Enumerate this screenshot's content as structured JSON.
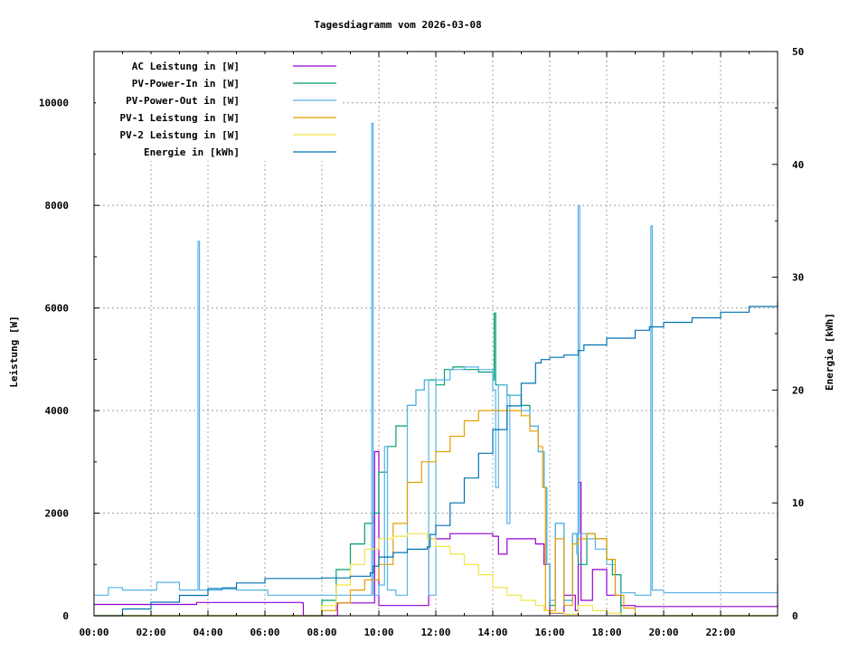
{
  "chart_data": {
    "type": "line",
    "title": "Tagesdiagramm vom 2026-03-08",
    "xlabel": "",
    "ylabel": "Leistung [W]",
    "y2label": "Energie [kWh]",
    "xlim": [
      0,
      24
    ],
    "ylim": [
      0,
      11000
    ],
    "y2lim": [
      0,
      50
    ],
    "grid": true,
    "legend_position": "top-left",
    "x_ticks": [
      "00:00",
      "02:00",
      "04:00",
      "06:00",
      "08:00",
      "10:00",
      "12:00",
      "14:00",
      "16:00",
      "18:00",
      "20:00",
      "22:00"
    ],
    "y_ticks": [
      "0",
      "2000",
      "4000",
      "6000",
      "8000",
      "10000"
    ],
    "y2_ticks": [
      "0",
      "10",
      "20",
      "30",
      "40",
      "50"
    ],
    "series": [
      {
        "name": "AC Leistung in [W]",
        "color": "#9400d3",
        "axis": "y",
        "x": [
          0,
          3.5,
          3.6,
          7.3,
          7.35,
          8.5,
          8.55,
          9.8,
          9.85,
          9.95,
          10.0,
          10.2,
          11.7,
          11.75,
          12.5,
          13.0,
          14.0,
          14.2,
          14.5,
          15.0,
          15.5,
          15.8,
          16.0,
          16.5,
          16.9,
          17.0,
          17.1,
          17.5,
          18.0,
          18.5,
          19.0,
          24
        ],
        "y": [
          220,
          220,
          260,
          250,
          0,
          0,
          250,
          250,
          3200,
          3200,
          200,
          200,
          200,
          1500,
          1600,
          1600,
          1550,
          1200,
          1500,
          1500,
          1400,
          1000,
          50,
          400,
          100,
          2600,
          300,
          900,
          400,
          200,
          180,
          220
        ]
      },
      {
        "name": "PV-Power-In in [W]",
        "color": "#009e73",
        "axis": "y",
        "x": [
          0,
          7.7,
          8.0,
          8.5,
          9.0,
          9.5,
          9.8,
          10.0,
          10.3,
          10.6,
          11.0,
          11.3,
          11.6,
          12.0,
          12.3,
          12.6,
          13.0,
          13.5,
          14.0,
          14.05,
          14.1,
          14.5,
          15.0,
          15.3,
          15.6,
          15.8,
          15.9,
          16.0,
          16.2,
          16.5,
          16.8,
          17.0,
          17.3,
          17.6,
          18.0,
          18.2,
          18.5,
          24
        ],
        "y": [
          0,
          0,
          300,
          900,
          1400,
          1800,
          2000,
          2800,
          3300,
          3700,
          4100,
          4400,
          4600,
          4500,
          4800,
          4850,
          4800,
          4750,
          4600,
          5900,
          4500,
          4300,
          4100,
          3700,
          3200,
          2500,
          1000,
          200,
          1800,
          300,
          1600,
          1000,
          1600,
          1500,
          1100,
          800,
          0,
          0
        ]
      },
      {
        "name": "PV-Power-Out in [W]",
        "color": "#56b4e9",
        "axis": "y",
        "x": [
          0,
          0.5,
          1.0,
          2.0,
          2.2,
          3.0,
          3.6,
          3.65,
          3.7,
          4.5,
          5.0,
          6.0,
          6.1,
          7.0,
          7.5,
          8.0,
          9.0,
          9.7,
          9.75,
          9.8,
          10.0,
          10.2,
          10.3,
          10.5,
          10.6,
          11.0,
          11.3,
          11.6,
          11.75,
          12.0,
          12.5,
          13.0,
          13.5,
          14.0,
          14.1,
          14.2,
          14.5,
          14.6,
          15.0,
          15.3,
          15.6,
          15.8,
          15.9,
          16.0,
          16.2,
          16.5,
          16.8,
          16.95,
          17.0,
          17.05,
          17.3,
          17.6,
          18.0,
          18.3,
          18.5,
          19.0,
          19.5,
          19.55,
          19.6,
          20.0,
          21.0,
          22.0,
          23.0,
          23.9,
          24
        ],
        "y": [
          400,
          550,
          500,
          500,
          650,
          500,
          500,
          7300,
          500,
          550,
          500,
          500,
          400,
          400,
          400,
          400,
          400,
          400,
          9600,
          400,
          600,
          3300,
          500,
          500,
          400,
          4100,
          4400,
          4600,
          400,
          4600,
          4800,
          4850,
          4800,
          4400,
          2500,
          4500,
          1800,
          4300,
          4000,
          3700,
          3200,
          2500,
          1000,
          300,
          1800,
          300,
          1600,
          1200,
          8000,
          1600,
          1500,
          1300,
          1000,
          400,
          450,
          400,
          400,
          7600,
          500,
          450,
          450,
          450,
          450,
          450,
          600
        ]
      },
      {
        "name": "PV-1 Leistung in [W]",
        "color": "#e69f00",
        "axis": "y",
        "x": [
          0,
          7.8,
          8.0,
          8.5,
          9.0,
          9.5,
          10.0,
          10.5,
          11.0,
          11.5,
          12.0,
          12.5,
          13.0,
          13.5,
          14.0,
          14.5,
          15.0,
          15.3,
          15.6,
          15.75,
          15.85,
          16.0,
          16.2,
          16.5,
          16.8,
          17.0,
          17.3,
          17.6,
          18.0,
          18.3,
          18.6,
          19.0,
          24
        ],
        "y": [
          0,
          0,
          100,
          250,
          500,
          700,
          1000,
          1800,
          2600,
          3000,
          3200,
          3500,
          3800,
          4000,
          4000,
          4000,
          3900,
          3600,
          3300,
          2500,
          100,
          100,
          1500,
          200,
          1400,
          1500,
          1600,
          1500,
          1100,
          400,
          150,
          0,
          0
        ]
      },
      {
        "name": "PV-2 Leistung in [W]",
        "color": "#f0e442",
        "axis": "y",
        "x": [
          0,
          7.6,
          8.0,
          8.5,
          9.0,
          9.5,
          10.0,
          10.5,
          11.0,
          11.5,
          11.7,
          12.0,
          12.5,
          13.0,
          13.5,
          14.0,
          14.5,
          15.0,
          15.5,
          15.8,
          16.0,
          16.5,
          17.0,
          17.5,
          18.0,
          18.5,
          24
        ],
        "y": [
          0,
          0,
          200,
          600,
          1000,
          1300,
          1500,
          1550,
          1600,
          1600,
          1500,
          1350,
          1200,
          1000,
          800,
          550,
          400,
          300,
          200,
          100,
          60,
          30,
          200,
          100,
          50,
          0,
          0
        ]
      },
      {
        "name": "Energie in [kWh]",
        "color": "#0072b2",
        "axis": "y2",
        "x": [
          0,
          1,
          2,
          3,
          4,
          5,
          6,
          7,
          8,
          9,
          9.7,
          9.8,
          10.0,
          10.5,
          11.0,
          11.7,
          11.8,
          12.0,
          12.5,
          13.0,
          13.5,
          14.0,
          14.5,
          15.0,
          15.5,
          15.7,
          16.0,
          16.5,
          17.0,
          17.2,
          18.0,
          19.0,
          19.5,
          20.0,
          21.0,
          22.0,
          23.0,
          24
        ],
        "y": [
          0,
          0.6,
          1.2,
          1.8,
          2.4,
          2.9,
          3.3,
          3.3,
          3.35,
          3.5,
          3.8,
          4.4,
          5.2,
          5.6,
          5.9,
          6.1,
          7.2,
          8.0,
          10.0,
          12.2,
          14.4,
          16.5,
          18.6,
          20.6,
          22.4,
          22.7,
          22.9,
          23.1,
          23.5,
          24.0,
          24.6,
          25.3,
          25.6,
          26.0,
          26.4,
          26.9,
          27.4,
          27.8
        ]
      }
    ]
  }
}
